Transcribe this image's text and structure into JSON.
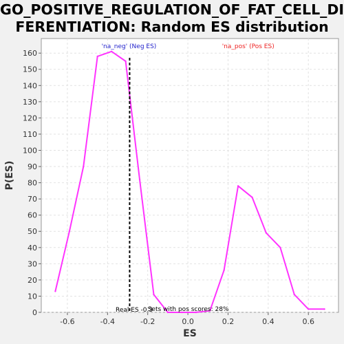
{
  "chart_data": {
    "type": "line",
    "title_line1": "GO_POSITIVE_REGULATION_OF_FAT_CELL_DIF",
    "title_line2": "FERENTIATION: Random ES distribution",
    "xlabel": "ES",
    "ylabel": "P(ES)",
    "xlim": [
      -0.73,
      0.75
    ],
    "ylim": [
      0,
      169
    ],
    "xticks": [
      -0.6,
      -0.4,
      -0.2,
      0.0,
      0.2,
      0.4,
      0.6
    ],
    "xtick_labels": [
      "-0.6",
      "-0.4",
      "-0.2",
      "0.0",
      "0.2",
      "0.4",
      "0.6"
    ],
    "yticks": [
      0,
      10,
      20,
      30,
      40,
      50,
      60,
      70,
      80,
      90,
      100,
      110,
      120,
      130,
      140,
      150,
      160
    ],
    "ytick_labels": [
      "0",
      "10",
      "20",
      "30",
      "40",
      "50",
      "60",
      "70",
      "80",
      "90",
      "100",
      "110",
      "120",
      "130",
      "140",
      "150",
      "160"
    ],
    "grid": true,
    "series": [
      {
        "color": "#ff33ff",
        "x": [
          -0.66,
          -0.59,
          -0.52,
          -0.45,
          -0.38,
          -0.31,
          -0.24,
          -0.17,
          -0.1,
          -0.03,
          0.04,
          0.11,
          0.18,
          0.25,
          0.32,
          0.39,
          0.46,
          0.53,
          0.6,
          0.68
        ],
        "y": [
          13,
          50,
          90,
          158,
          161,
          155,
          82,
          11,
          0,
          0,
          0,
          1,
          26,
          78,
          71,
          49,
          40,
          11,
          2,
          2
        ]
      }
    ],
    "real_es": -0.29,
    "annotations": {
      "neg_label": "'na_neg' (Neg ES)",
      "pos_label": "'na_pos' (Pos ES)",
      "real_es_label": "Real ES -0.3",
      "pos_scores_label": "Sets with pos scores: 28%"
    },
    "colors": {
      "line": "#ff33ff",
      "neg_label": "#2222cc",
      "pos_label": "#ee2222",
      "plot_bg": "#ffffff",
      "grid": "#e2e2e2"
    }
  }
}
